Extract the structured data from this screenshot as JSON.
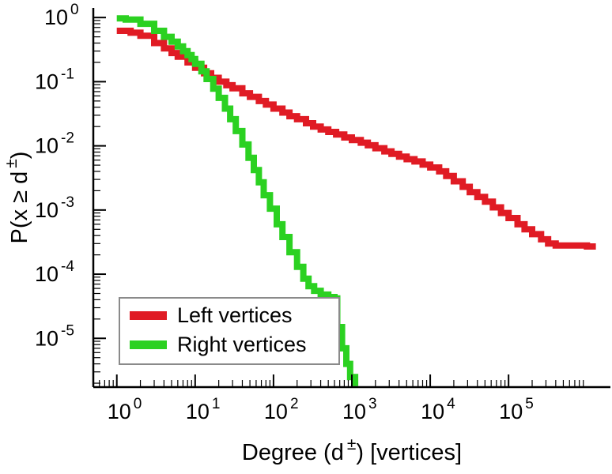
{
  "chart_data": {
    "type": "line",
    "subtype": "ccdf-step-loglog",
    "title": "",
    "xlabel": "Degree (d±) [vertices]",
    "ylabel": "P(x ≥ d±)",
    "xlabel_parts": {
      "pre": "Degree (d",
      "sup": "±",
      "post": ") [vertices]"
    },
    "ylabel_parts": {
      "pre": "P(x ≥ d",
      "sup": "±",
      "post": ")"
    },
    "x_scale": "log",
    "y_scale": "log",
    "grid": false,
    "legend_position": "bottom-left",
    "x_tick_exponents": [
      0,
      1,
      2,
      3,
      4,
      5
    ],
    "y_tick_exponents": [
      0,
      -1,
      -2,
      -3,
      -4,
      -5
    ],
    "x_display_range_log10": [
      -0.3,
      6.3
    ],
    "y_display_range_log10": [
      -5.76,
      0.15
    ],
    "axis_color": "#000000",
    "series": [
      {
        "name": "Left vertices",
        "color": "#e01b24",
        "points": [
          [
            1,
            0.62
          ],
          [
            1.5,
            0.58
          ],
          [
            2,
            0.52
          ],
          [
            3,
            0.4
          ],
          [
            4,
            0.33
          ],
          [
            5,
            0.28
          ],
          [
            6,
            0.245
          ],
          [
            8,
            0.2
          ],
          [
            10,
            0.165
          ],
          [
            13,
            0.135
          ],
          [
            16,
            0.115
          ],
          [
            20,
            0.1
          ],
          [
            25,
            0.088
          ],
          [
            30,
            0.079
          ],
          [
            40,
            0.066
          ],
          [
            50,
            0.058
          ],
          [
            65,
            0.05
          ],
          [
            80,
            0.044
          ],
          [
            100,
            0.038
          ],
          [
            130,
            0.033
          ],
          [
            160,
            0.029
          ],
          [
            200,
            0.026
          ],
          [
            260,
            0.0225
          ],
          [
            320,
            0.02
          ],
          [
            400,
            0.018
          ],
          [
            500,
            0.0165
          ],
          [
            630,
            0.015
          ],
          [
            800,
            0.0135
          ],
          [
            1000,
            0.0123
          ],
          [
            1300,
            0.0112
          ],
          [
            1600,
            0.0102
          ],
          [
            2000,
            0.0092
          ],
          [
            2600,
            0.0082
          ],
          [
            3200,
            0.0075
          ],
          [
            4000,
            0.0068
          ],
          [
            5000,
            0.0062
          ],
          [
            6300,
            0.0057
          ],
          [
            8000,
            0.0051
          ],
          [
            10000,
            0.0046
          ],
          [
            13000,
            0.004
          ],
          [
            16000,
            0.0034
          ],
          [
            20000,
            0.0028
          ],
          [
            26000,
            0.0023
          ],
          [
            32000,
            0.0019
          ],
          [
            40000,
            0.0016
          ],
          [
            50000,
            0.00135
          ],
          [
            63000,
            0.0011
          ],
          [
            80000,
            0.0009
          ],
          [
            100000,
            0.00075
          ],
          [
            130000,
            0.0006
          ],
          [
            160000,
            0.0005
          ],
          [
            200000,
            0.00042
          ],
          [
            260000,
            0.00035
          ],
          [
            320000,
            0.0003
          ],
          [
            400000,
            0.00028
          ],
          [
            700000,
            0.00028
          ],
          [
            1000000,
            0.00027
          ],
          [
            1300000,
            0.00027
          ]
        ]
      },
      {
        "name": "Right vertices",
        "color": "#2bd121",
        "points": [
          [
            1,
            0.97
          ],
          [
            1.3,
            0.93
          ],
          [
            2,
            0.8
          ],
          [
            3,
            0.62
          ],
          [
            4,
            0.5
          ],
          [
            5,
            0.42
          ],
          [
            6,
            0.355
          ],
          [
            7,
            0.3
          ],
          [
            8,
            0.26
          ],
          [
            9,
            0.225
          ],
          [
            10,
            0.19
          ],
          [
            12,
            0.145
          ],
          [
            14,
            0.11
          ],
          [
            17,
            0.078
          ],
          [
            20,
            0.056
          ],
          [
            24,
            0.038
          ],
          [
            28,
            0.026
          ],
          [
            33,
            0.017
          ],
          [
            40,
            0.0105
          ],
          [
            48,
            0.0065
          ],
          [
            56,
            0.0042
          ],
          [
            65,
            0.0027
          ],
          [
            75,
            0.0017
          ],
          [
            90,
            0.00105
          ],
          [
            110,
            0.0006
          ],
          [
            130,
            0.00038
          ],
          [
            160,
            0.00022
          ],
          [
            200,
            0.00013
          ],
          [
            240,
            8.5e-05
          ],
          [
            280,
            6.5e-05
          ],
          [
            330,
            5.5e-05
          ],
          [
            400,
            4.8e-05
          ],
          [
            500,
            4.4e-05
          ],
          [
            600,
            4.2e-05
          ],
          [
            650,
            1.5e-05
          ],
          [
            750,
            7e-06
          ],
          [
            850,
            4e-06
          ],
          [
            950,
            2.5e-06
          ],
          [
            1100,
            1.8e-06
          ]
        ]
      }
    ]
  }
}
